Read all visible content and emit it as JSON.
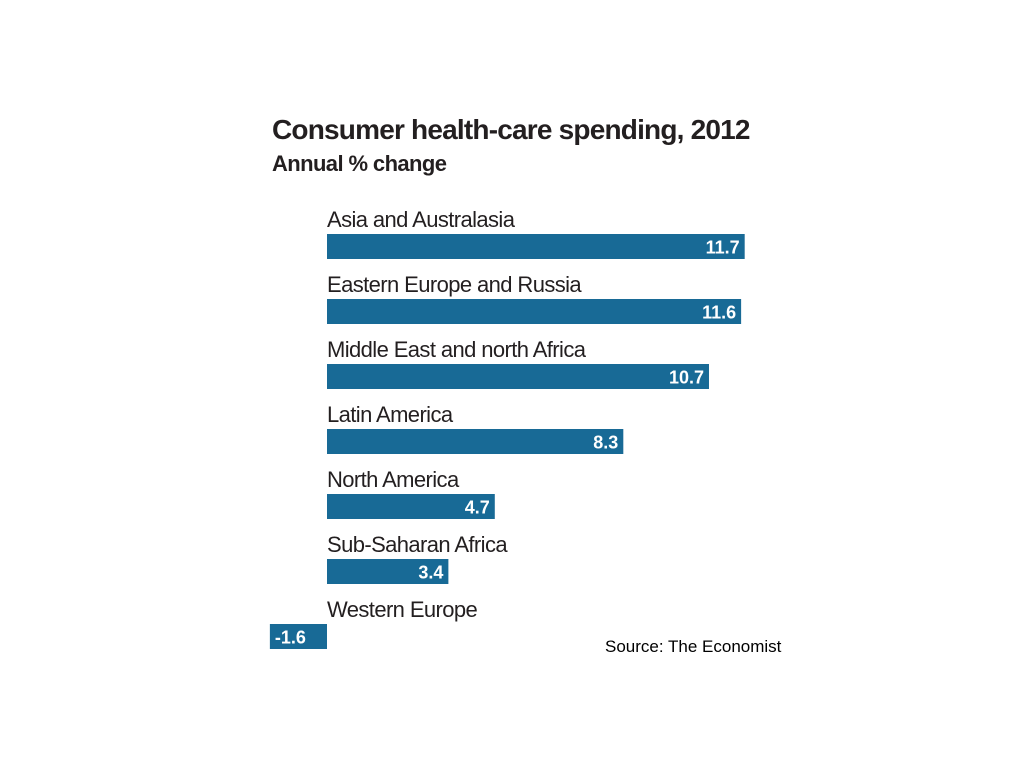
{
  "source": "Source: The Economist",
  "chart_data": {
    "type": "bar",
    "orientation": "horizontal",
    "title": "Consumer health-care spending, 2012",
    "subtitle": "Annual % change",
    "categories": [
      "Asia and Australasia",
      "Eastern Europe and Russia",
      "Middle East and north Africa",
      "Latin America",
      "North America",
      "Sub-Saharan Africa",
      "Western Europe"
    ],
    "values": [
      11.7,
      11.6,
      10.7,
      8.3,
      4.7,
      3.4,
      -1.6
    ],
    "value_labels": [
      "11.7",
      "11.6",
      "10.7",
      "8.3",
      "4.7",
      "3.4",
      "-1.6"
    ],
    "bar_color": "#186a96",
    "value_label_color": "#ffffff",
    "grid": false,
    "legend": "none"
  }
}
